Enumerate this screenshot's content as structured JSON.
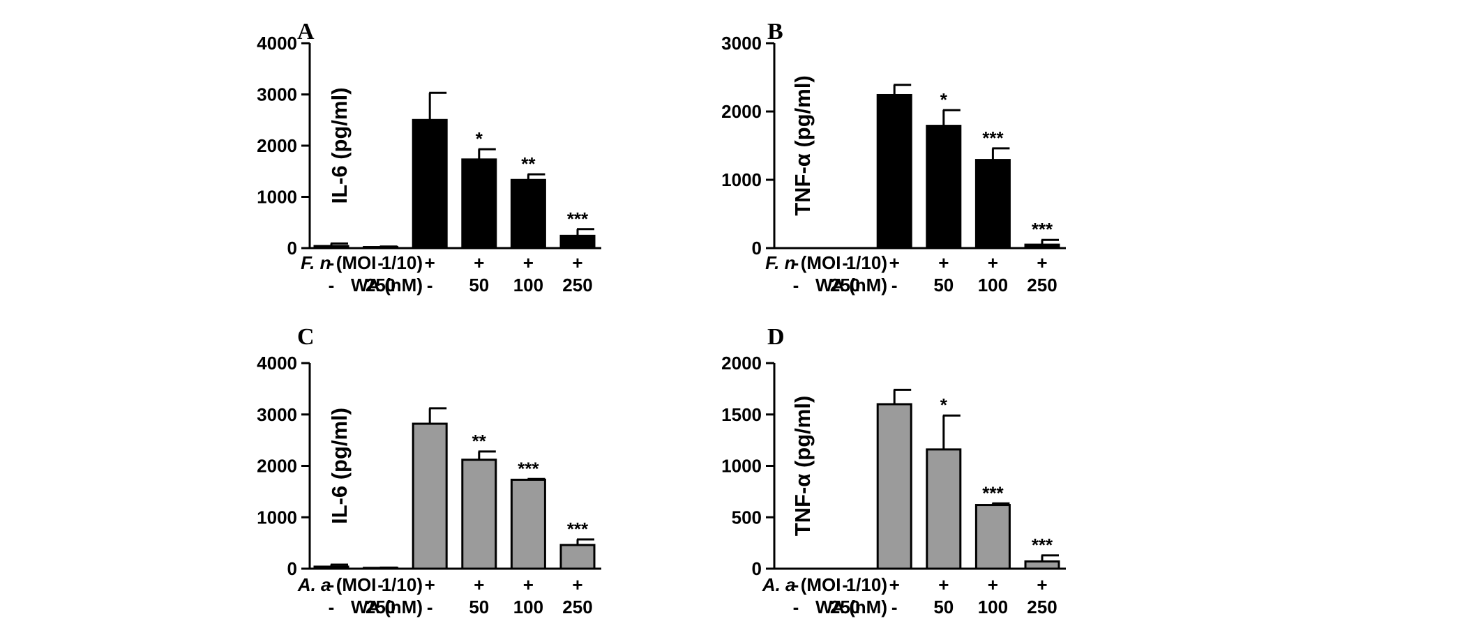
{
  "chart_data": [
    {
      "type": "bar",
      "panel": "A",
      "ylabel": "IL-6 (pg/ml)",
      "ylim": [
        0,
        4000
      ],
      "yticks": [
        "0",
        "1000",
        "2000",
        "3000",
        "4000"
      ],
      "bar_color": "#000000",
      "categories": [
        "1",
        "2",
        "3",
        "4",
        "5",
        "6"
      ],
      "values": [
        40,
        20,
        2500,
        1730,
        1330,
        240
      ],
      "errors": [
        50,
        10,
        530,
        200,
        110,
        130
      ],
      "significance": [
        "",
        "",
        "",
        "*",
        "**",
        "***"
      ],
      "conditions": [
        {
          "italic": "F. n",
          "rest": " (MOI 1/10)",
          "values": [
            "-",
            "-",
            "+",
            "+",
            "+",
            "+"
          ]
        },
        {
          "italic": "",
          "rest": "WA (nM)",
          "values": [
            "-",
            "250",
            "-",
            "50",
            "100",
            "250"
          ]
        }
      ]
    },
    {
      "type": "bar",
      "panel": "B",
      "ylabel": "TNF-α (pg/ml)",
      "ylim": [
        0,
        3000
      ],
      "yticks": [
        "0",
        "1000",
        "2000",
        "3000"
      ],
      "bar_color": "#000000",
      "categories": [
        "1",
        "2",
        "3",
        "4",
        "5",
        "6"
      ],
      "values": [
        0,
        0,
        2240,
        1790,
        1290,
        50
      ],
      "errors": [
        0,
        0,
        150,
        230,
        170,
        70
      ],
      "significance": [
        "",
        "",
        "",
        "*",
        "***",
        "***"
      ],
      "conditions": [
        {
          "italic": "F. n",
          "rest": " (MOI 1/10)",
          "values": [
            "-",
            "-",
            "+",
            "+",
            "+",
            "+"
          ]
        },
        {
          "italic": "",
          "rest": "WA (nM)",
          "values": [
            "-",
            "250",
            "-",
            "50",
            "100",
            "250"
          ]
        }
      ]
    },
    {
      "type": "bar",
      "panel": "C",
      "ylabel": "IL-6 (pg/ml)",
      "ylim": [
        0,
        4000
      ],
      "yticks": [
        "0",
        "1000",
        "2000",
        "3000",
        "4000"
      ],
      "bar_color": "#9b9b9b",
      "categories": [
        "1",
        "2",
        "3",
        "4",
        "5",
        "6"
      ],
      "values": [
        40,
        15,
        2820,
        2120,
        1730,
        460
      ],
      "errors": [
        40,
        5,
        300,
        160,
        15,
        110
      ],
      "significance": [
        "",
        "",
        "",
        "**",
        "***",
        "***"
      ],
      "conditions": [
        {
          "italic": "A. a",
          "rest": " (MOI 1/10)",
          "values": [
            "-",
            "-",
            "+",
            "+",
            "+",
            "+"
          ]
        },
        {
          "italic": "",
          "rest": "WA (nM)",
          "values": [
            "-",
            "250",
            "-",
            "50",
            "100",
            "250"
          ]
        }
      ]
    },
    {
      "type": "bar",
      "panel": "D",
      "ylabel": "TNF-α (pg/ml)",
      "ylim": [
        0,
        2000
      ],
      "yticks": [
        "0",
        "500",
        "1000",
        "1500",
        "2000"
      ],
      "bar_color": "#9b9b9b",
      "categories": [
        "1",
        "2",
        "3",
        "4",
        "5",
        "6"
      ],
      "values": [
        0,
        0,
        1600,
        1160,
        620,
        70
      ],
      "errors": [
        0,
        0,
        140,
        330,
        15,
        60
      ],
      "significance": [
        "",
        "",
        "",
        "*",
        "***",
        "***"
      ],
      "conditions": [
        {
          "italic": "A. a",
          "rest": " (MOI 1/10)",
          "values": [
            "-",
            "-",
            "+",
            "+",
            "+",
            "+"
          ]
        },
        {
          "italic": "",
          "rest": "WA (nM)",
          "values": [
            "-",
            "250",
            "-",
            "50",
            "100",
            "250"
          ]
        }
      ]
    }
  ]
}
